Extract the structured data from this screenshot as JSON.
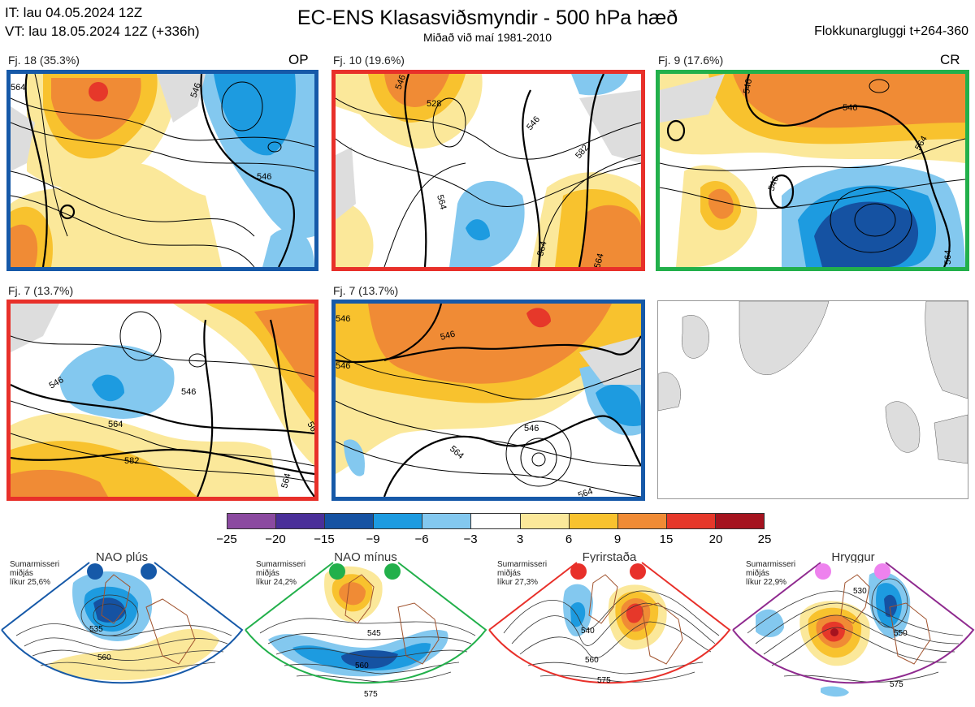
{
  "header": {
    "init_time": "IT: lau 04.05.2024 12Z",
    "valid_time": "VT: lau 18.05.2024 12Z  (+336h)",
    "title": "EC-ENS Klasasviðsmyndir - 500 hPa hæð",
    "subtitle": "Miðað við maí 1981-2010",
    "window": "Flokkunargluggi t+264-360"
  },
  "panels": [
    {
      "label": "Fj. 18 (35.3%)",
      "tag": "OP",
      "border": "#1659a8",
      "contours": [
        "564",
        "546",
        "546"
      ]
    },
    {
      "label": "Fj. 10 (19.6%)",
      "tag": "",
      "border": "#e8302a",
      "contours": [
        "528",
        "546",
        "546",
        "564",
        "582",
        "564"
      ]
    },
    {
      "label": "Fj. 9 (17.6%)",
      "tag": "CR",
      "border": "#22b04b",
      "contours": [
        "546",
        "546",
        "546",
        "564",
        "564"
      ]
    },
    {
      "label": "Fj. 7 (13.7%)",
      "tag": "",
      "border": "#e8302a",
      "contours": [
        "546",
        "546",
        "564",
        "582",
        "564",
        "56"
      ]
    },
    {
      "label": "Fj. 7 (13.7%)",
      "tag": "",
      "border": "#1659a8",
      "contours": [
        "546",
        "546",
        "546",
        "546",
        "564",
        "564"
      ]
    }
  ],
  "colorbar": {
    "ticks": [
      "−25",
      "−20",
      "−15",
      "−9",
      "−6",
      "−3",
      "3",
      "6",
      "9",
      "15",
      "20",
      "25"
    ],
    "colors": [
      "#8b4aa0",
      "#4a2f99",
      "#1552a2",
      "#1d9be0",
      "#83c8ef",
      "#ffffff",
      "#fbe89a",
      "#f8c22e",
      "#f08b35",
      "#e6382a",
      "#a5131f"
    ]
  },
  "regimes": [
    {
      "name": "NAO plús",
      "season": "Sumarmisseri",
      "mid": "miðjás",
      "prob": "líkur 25,6%",
      "color": "#1659a8",
      "contours": [
        "535",
        "560"
      ]
    },
    {
      "name": "NAO mínus",
      "season": "Sumarmisseri",
      "mid": "miðjás",
      "prob": "líkur 24,2%",
      "color": "#22b04b",
      "contours": [
        "545",
        "560",
        "575"
      ]
    },
    {
      "name": "Fyrirstaða",
      "season": "Sumarmisseri",
      "mid": "miðjás",
      "prob": "líkur 27,3%",
      "color": "#e8302a",
      "contours": [
        "540",
        "560",
        "575"
      ]
    },
    {
      "name": "Hryggur",
      "season": "Sumarmisseri",
      "mid": "miðjás",
      "prob": "líkur 22,9%",
      "color": "#8f2a8f",
      "contours": [
        "530",
        "550",
        "575"
      ]
    }
  ]
}
